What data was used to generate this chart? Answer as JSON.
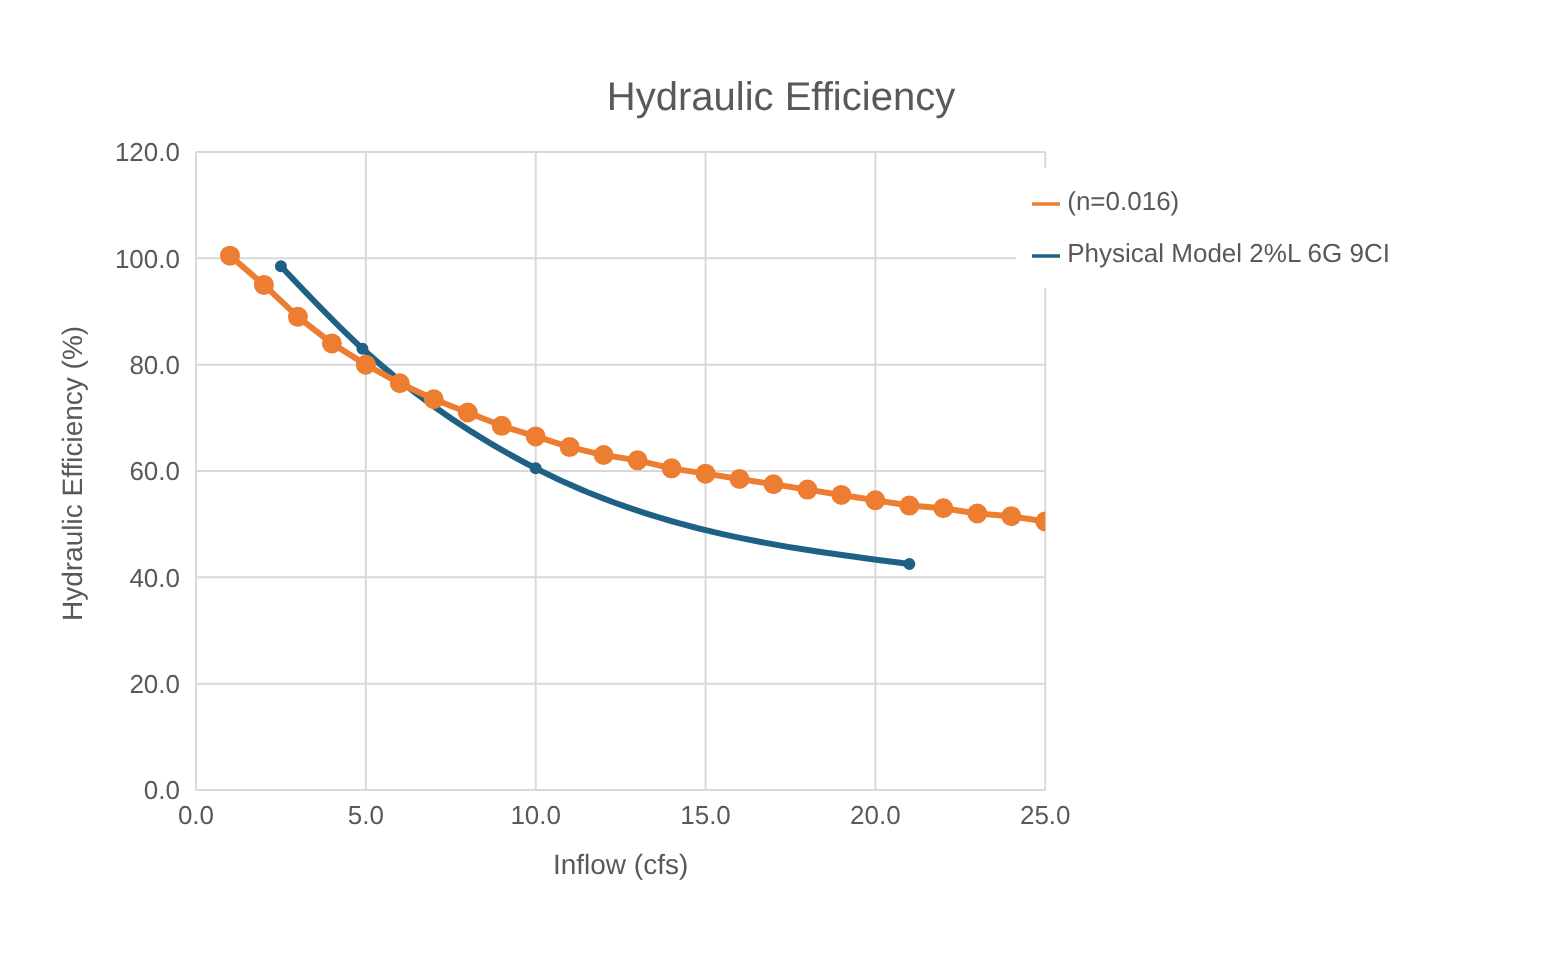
{
  "chart_data": {
    "type": "line",
    "title": "Hydraulic Efficiency",
    "xlabel": "Inflow (cfs)",
    "ylabel": "Hydraulic Efficiency (%)",
    "xlim": [
      0,
      25
    ],
    "xticks": [
      {
        "value": 0,
        "label": "0.0"
      },
      {
        "value": 5,
        "label": "5.0"
      },
      {
        "value": 10,
        "label": "10.0"
      },
      {
        "value": 15,
        "label": "15.0"
      },
      {
        "value": 20,
        "label": "20.0"
      },
      {
        "value": 25,
        "label": "25.0"
      }
    ],
    "ylim": [
      0,
      120
    ],
    "yticks": [
      {
        "value": 0,
        "label": "0.0"
      },
      {
        "value": 20,
        "label": "20.0"
      },
      {
        "value": 40,
        "label": "40.0"
      },
      {
        "value": 60,
        "label": "60.0"
      },
      {
        "value": 80,
        "label": "80.0"
      },
      {
        "value": 100,
        "label": "100.0"
      },
      {
        "value": 120,
        "label": "120.0"
      }
    ],
    "grid": true,
    "legend": "top right",
    "series": [
      {
        "name": "Physical Model 2%L 6G 9CI",
        "color": "#1f6185",
        "marker": "circle",
        "x": [
          2.5,
          4.9,
          10,
          21
        ],
        "values": [
          98.5,
          83,
          60.5,
          42.5
        ]
      },
      {
        "name": "(n=0.016)",
        "color": "#ed7d31",
        "marker": "circle",
        "x": [
          1,
          2,
          3,
          4,
          5,
          6,
          7,
          8,
          9,
          10,
          11,
          12,
          13,
          14,
          15,
          16,
          17,
          18,
          19,
          20,
          21,
          22,
          23,
          24,
          25
        ],
        "values": [
          100.5,
          95,
          89,
          84,
          80,
          76.5,
          73.5,
          71,
          68.5,
          66.5,
          64.5,
          63,
          62,
          60.5,
          59.5,
          58.5,
          57.5,
          56.5,
          55.5,
          54.5,
          53.5,
          53,
          52,
          51.5,
          50.5
        ]
      }
    ]
  }
}
